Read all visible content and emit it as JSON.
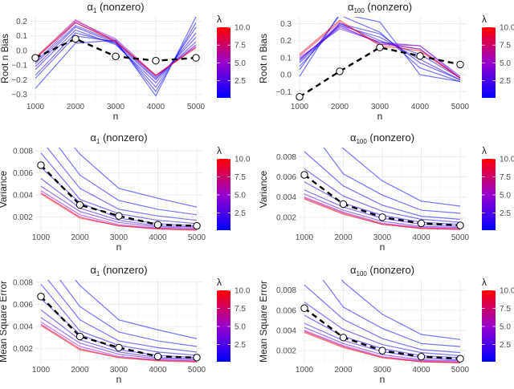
{
  "chart_data": [
    {
      "type": "line",
      "title": "α1 (nonzero)",
      "title_base": "α",
      "title_sub": "1",
      "title_rest": " (nonzero)",
      "xlabel": "n",
      "ylabel": "Root n Bias",
      "x": [
        1000,
        2000,
        3000,
        4000,
        5000
      ],
      "ylim": [
        -0.34,
        0.23
      ],
      "yticks": [
        -0.3,
        -0.2,
        -0.1,
        0.0,
        0.1,
        0.2
      ],
      "ytick_labels": [
        "−0.3",
        "−0.2",
        "−0.1",
        "0.0",
        "0.1",
        "0.2"
      ],
      "grid": true,
      "legend": {
        "title": "λ",
        "type": "colorbar",
        "range": [
          0.1,
          10
        ],
        "ticks": [
          "2.5",
          "5.0",
          "7.5",
          "10.0"
        ],
        "placement": "right",
        "low_color": "#0000FF",
        "mid_color": "#9900CC",
        "high_color": "#FF0000"
      },
      "series": [
        {
          "lambda": 0.1,
          "values": [
            -0.26,
            0.05,
            0.07,
            -0.31,
            0.23
          ]
        },
        {
          "lambda": 0.25,
          "values": [
            -0.19,
            0.1,
            0.06,
            -0.28,
            0.19
          ]
        },
        {
          "lambda": 0.5,
          "values": [
            -0.17,
            0.12,
            0.05,
            -0.25,
            0.16
          ]
        },
        {
          "lambda": 0.75,
          "values": [
            -0.13,
            0.14,
            0.04,
            -0.22,
            0.12
          ]
        },
        {
          "lambda": 1,
          "values": [
            -0.11,
            0.16,
            0.05,
            -0.2,
            0.09
          ]
        },
        {
          "lambda": 1.5,
          "values": [
            -0.09,
            0.17,
            0.06,
            -0.19,
            0.06
          ]
        },
        {
          "lambda": 2.5,
          "values": [
            -0.08,
            0.19,
            0.07,
            -0.18,
            0.04
          ]
        },
        {
          "lambda": 5,
          "values": [
            -0.06,
            0.2,
            0.08,
            -0.17,
            0.03
          ]
        },
        {
          "lambda": 7.5,
          "values": [
            -0.05,
            0.21,
            0.06,
            -0.17,
            0.02
          ]
        },
        {
          "lambda": 10,
          "values": [
            -0.05,
            0.19,
            0.06,
            -0.17,
            0.02
          ]
        }
      ],
      "reference": {
        "style": "dashed-black-with-circles",
        "values": [
          -0.05,
          0.08,
          -0.04,
          -0.07,
          -0.05
        ]
      }
    },
    {
      "type": "line",
      "title": "α100 (nonzero)",
      "title_base": "α",
      "title_sub": "100",
      "title_rest": " (nonzero)",
      "xlabel": "n",
      "ylabel": "Root n Bias",
      "x": [
        1000,
        2000,
        3000,
        4000,
        5000
      ],
      "ylim": [
        -0.15,
        0.34
      ],
      "yticks": [
        -0.1,
        0.0,
        0.1,
        0.2,
        0.3
      ],
      "ytick_labels": [
        "−0.1",
        "0.0",
        "0.1",
        "0.2",
        "0.3"
      ],
      "grid": true,
      "legend": {
        "title": "λ",
        "type": "colorbar",
        "range": [
          0.1,
          10
        ],
        "ticks": [
          "2.5",
          "5.0",
          "7.5",
          "10.0"
        ],
        "placement": "right",
        "low_color": "#0000FF",
        "mid_color": "#9900CC",
        "high_color": "#FF0000"
      },
      "series": [
        {
          "lambda": 0.1,
          "values": [
            -0.01,
            0.36,
            0.31,
            0.0,
            -0.04
          ]
        },
        {
          "lambda": 0.25,
          "values": [
            0.03,
            0.35,
            0.25,
            0.04,
            -0.04
          ]
        },
        {
          "lambda": 0.5,
          "values": [
            0.05,
            0.3,
            0.24,
            0.07,
            -0.03
          ]
        },
        {
          "lambda": 0.75,
          "values": [
            0.07,
            0.29,
            0.22,
            0.09,
            -0.03
          ]
        },
        {
          "lambda": 1,
          "values": [
            0.08,
            0.3,
            0.2,
            0.12,
            -0.02
          ]
        },
        {
          "lambda": 1.5,
          "values": [
            0.09,
            0.28,
            0.19,
            0.15,
            -0.02
          ]
        },
        {
          "lambda": 2.5,
          "values": [
            0.1,
            0.27,
            0.19,
            0.17,
            -0.01
          ]
        },
        {
          "lambda": 5,
          "values": [
            0.09,
            0.29,
            0.18,
            0.17,
            -0.02
          ]
        },
        {
          "lambda": 7.5,
          "values": [
            0.11,
            0.31,
            0.18,
            0.15,
            -0.02
          ]
        },
        {
          "lambda": 10,
          "values": [
            0.12,
            0.32,
            0.17,
            0.14,
            -0.02
          ]
        }
      ],
      "reference": {
        "style": "dashed-black-with-circles",
        "values": [
          -0.13,
          0.02,
          0.16,
          0.11,
          0.06
        ]
      }
    },
    {
      "type": "line",
      "title": "α1 (nonzero)",
      "title_base": "α",
      "title_sub": "1",
      "title_rest": " (nonzero)",
      "xlabel": "n",
      "ylabel": "Variance",
      "x": [
        1000,
        2000,
        3000,
        4000,
        5000
      ],
      "ylim": [
        0.00073,
        0.0083
      ],
      "yticks": [
        0.002,
        0.004,
        0.006,
        0.008
      ],
      "ytick_labels": [
        "0.002",
        "0.004",
        "0.006",
        "0.008"
      ],
      "grid": true,
      "legend": {
        "title": "λ",
        "type": "colorbar",
        "range": [
          0.1,
          10
        ],
        "ticks": [
          "2.5",
          "5.0",
          "7.5",
          "10.0"
        ],
        "placement": "right",
        "low_color": "#0000FF",
        "mid_color": "#9900CC",
        "high_color": "#FF0000"
      },
      "series": [
        {
          "lambda": 0.1,
          "values": [
            0.012,
            0.0077,
            0.0046,
            0.0037,
            0.0029
          ]
        },
        {
          "lambda": 0.25,
          "values": [
            0.0105,
            0.0058,
            0.0035,
            0.0027,
            0.0022
          ]
        },
        {
          "lambda": 0.5,
          "values": [
            0.009,
            0.0046,
            0.0027,
            0.0021,
            0.0017
          ]
        },
        {
          "lambda": 0.75,
          "values": [
            0.0078,
            0.0036,
            0.0023,
            0.0017,
            0.0014
          ]
        },
        {
          "lambda": 1,
          "values": [
            0.0065,
            0.0033,
            0.0019,
            0.0014,
            0.0012
          ]
        },
        {
          "lambda": 1.5,
          "values": [
            0.0055,
            0.0028,
            0.0017,
            0.0012,
            0.0011
          ]
        },
        {
          "lambda": 2.5,
          "values": [
            0.0048,
            0.0025,
            0.0015,
            0.0011,
            0.001
          ]
        },
        {
          "lambda": 5,
          "values": [
            0.0044,
            0.0022,
            0.0013,
            0.001,
            0.0009
          ]
        },
        {
          "lambda": 7.5,
          "values": [
            0.0042,
            0.002,
            0.0012,
            0.00095,
            0.00085
          ]
        },
        {
          "lambda": 10,
          "values": [
            0.0041,
            0.0019,
            0.0012,
            0.0009,
            0.0008
          ]
        }
      ],
      "reference": {
        "style": "dashed-black-with-circles",
        "values": [
          0.0067,
          0.0031,
          0.0021,
          0.0013,
          0.0012
        ]
      }
    },
    {
      "type": "line",
      "title": "α100 (nonzero)",
      "title_base": "α",
      "title_sub": "100",
      "title_rest": " (nonzero)",
      "xlabel": "n",
      "ylabel": "Variance",
      "x": [
        1000,
        2000,
        3000,
        4000,
        5000
      ],
      "ylim": [
        0.00064,
        0.0089
      ],
      "yticks": [
        0.002,
        0.004,
        0.006,
        0.008
      ],
      "ytick_labels": [
        "0.002",
        "0.004",
        "0.006",
        "0.008"
      ],
      "grid": true,
      "legend": {
        "title": "λ",
        "type": "colorbar",
        "range": [
          0.1,
          10
        ],
        "ticks": [
          "2.5",
          "5.0",
          "7.5",
          "10.0"
        ],
        "placement": "right",
        "low_color": "#0000FF",
        "mid_color": "#9900CC",
        "high_color": "#FF0000"
      },
      "series": [
        {
          "lambda": 0.1,
          "values": [
            0.014,
            0.0088,
            0.0056,
            0.0036,
            0.0031
          ]
        },
        {
          "lambda": 0.25,
          "values": [
            0.0115,
            0.0063,
            0.0042,
            0.0027,
            0.0024
          ]
        },
        {
          "lambda": 0.5,
          "values": [
            0.0085,
            0.0051,
            0.0032,
            0.0021,
            0.0018
          ]
        },
        {
          "lambda": 0.75,
          "values": [
            0.0068,
            0.0041,
            0.0026,
            0.0018,
            0.0015
          ]
        },
        {
          "lambda": 1,
          "values": [
            0.0055,
            0.0034,
            0.0022,
            0.0015,
            0.0013
          ]
        },
        {
          "lambda": 1.5,
          "values": [
            0.0047,
            0.003,
            0.0019,
            0.0013,
            0.0011
          ]
        },
        {
          "lambda": 2.5,
          "values": [
            0.0043,
            0.0027,
            0.0016,
            0.0011,
            0.001
          ]
        },
        {
          "lambda": 5,
          "values": [
            0.004,
            0.0025,
            0.0014,
            0.001,
            0.0009
          ]
        },
        {
          "lambda": 7.5,
          "values": [
            0.0039,
            0.0024,
            0.0013,
            0.0009,
            0.0008
          ]
        },
        {
          "lambda": 10,
          "values": [
            0.0038,
            0.0023,
            0.0013,
            0.0009,
            0.0008
          ]
        }
      ],
      "reference": {
        "style": "dashed-black-with-circles",
        "values": [
          0.0062,
          0.0033,
          0.002,
          0.0014,
          0.0012
        ]
      }
    },
    {
      "type": "line",
      "title": "α1 (nonzero)",
      "title_base": "α",
      "title_sub": "1",
      "title_rest": " (nonzero)",
      "xlabel": "n",
      "ylabel": "Mean Square Error",
      "x": [
        1000,
        2000,
        3000,
        4000,
        5000
      ],
      "ylim": [
        0.00068,
        0.0082
      ],
      "yticks": [
        0.002,
        0.004,
        0.006,
        0.008
      ],
      "ytick_labels": [
        "0.002",
        "0.004",
        "0.006",
        "0.008"
      ],
      "grid": true,
      "legend": {
        "title": "λ",
        "type": "colorbar",
        "range": [
          0.1,
          10
        ],
        "ticks": [
          "2.5",
          "5.0",
          "7.5",
          "10.0"
        ],
        "placement": "right",
        "low_color": "#0000FF",
        "mid_color": "#9900CC",
        "high_color": "#FF0000"
      },
      "series": [
        {
          "lambda": 0.1,
          "values": [
            0.012,
            0.0077,
            0.0046,
            0.0037,
            0.0029
          ]
        },
        {
          "lambda": 0.25,
          "values": [
            0.0105,
            0.0058,
            0.0035,
            0.0027,
            0.0022
          ]
        },
        {
          "lambda": 0.5,
          "values": [
            0.009,
            0.0046,
            0.0027,
            0.0021,
            0.0017
          ]
        },
        {
          "lambda": 0.75,
          "values": [
            0.0078,
            0.0036,
            0.0023,
            0.0017,
            0.0014
          ]
        },
        {
          "lambda": 1,
          "values": [
            0.0065,
            0.0033,
            0.0019,
            0.0014,
            0.0012
          ]
        },
        {
          "lambda": 1.5,
          "values": [
            0.0055,
            0.0028,
            0.0017,
            0.0012,
            0.0011
          ]
        },
        {
          "lambda": 2.5,
          "values": [
            0.0048,
            0.0025,
            0.0015,
            0.0011,
            0.001
          ]
        },
        {
          "lambda": 5,
          "values": [
            0.0044,
            0.0022,
            0.0013,
            0.001,
            0.0009
          ]
        },
        {
          "lambda": 7.5,
          "values": [
            0.0042,
            0.002,
            0.0012,
            0.00095,
            0.00085
          ]
        },
        {
          "lambda": 10,
          "values": [
            0.0041,
            0.0019,
            0.0012,
            0.0009,
            0.0008
          ]
        }
      ],
      "reference": {
        "style": "dashed-black-with-circles",
        "values": [
          0.0067,
          0.0031,
          0.0021,
          0.0013,
          0.0012
        ]
      }
    },
    {
      "type": "line",
      "title": "α100 (nonzero)",
      "title_base": "α",
      "title_sub": "100",
      "title_rest": " (nonzero)",
      "xlabel": "n",
      "ylabel": "Mean Square Error",
      "x": [
        1000,
        2000,
        3000,
        4000,
        5000
      ],
      "ylim": [
        0.00074,
        0.009
      ],
      "yticks": [
        0.002,
        0.004,
        0.006,
        0.008
      ],
      "ytick_labels": [
        "0.002",
        "0.004",
        "0.006",
        "0.008"
      ],
      "grid": true,
      "legend": {
        "title": "λ",
        "type": "colorbar",
        "range": [
          0.1,
          10
        ],
        "ticks": [
          "2.5",
          "5.0",
          "7.5",
          "10.0"
        ],
        "placement": "right",
        "low_color": "#0000FF",
        "mid_color": "#9900CC",
        "high_color": "#FF0000"
      },
      "series": [
        {
          "lambda": 0.1,
          "values": [
            0.014,
            0.0088,
            0.0056,
            0.0036,
            0.0031
          ]
        },
        {
          "lambda": 0.25,
          "values": [
            0.0115,
            0.0063,
            0.0042,
            0.0027,
            0.0024
          ]
        },
        {
          "lambda": 0.5,
          "values": [
            0.0085,
            0.0051,
            0.0032,
            0.0021,
            0.0018
          ]
        },
        {
          "lambda": 0.75,
          "values": [
            0.0068,
            0.0041,
            0.0026,
            0.0018,
            0.0015
          ]
        },
        {
          "lambda": 1,
          "values": [
            0.0055,
            0.0034,
            0.0022,
            0.0015,
            0.0013
          ]
        },
        {
          "lambda": 1.5,
          "values": [
            0.0047,
            0.003,
            0.0019,
            0.0013,
            0.0011
          ]
        },
        {
          "lambda": 2.5,
          "values": [
            0.0043,
            0.0027,
            0.0016,
            0.0011,
            0.001
          ]
        },
        {
          "lambda": 5,
          "values": [
            0.004,
            0.0025,
            0.0014,
            0.001,
            0.0009
          ]
        },
        {
          "lambda": 7.5,
          "values": [
            0.0039,
            0.0024,
            0.0013,
            0.0009,
            0.0008
          ]
        },
        {
          "lambda": 10,
          "values": [
            0.0038,
            0.0023,
            0.0013,
            0.0009,
            0.0008
          ]
        }
      ],
      "reference": {
        "style": "dashed-black-with-circles",
        "values": [
          0.0062,
          0.0033,
          0.002,
          0.0014,
          0.0012
        ]
      }
    }
  ]
}
